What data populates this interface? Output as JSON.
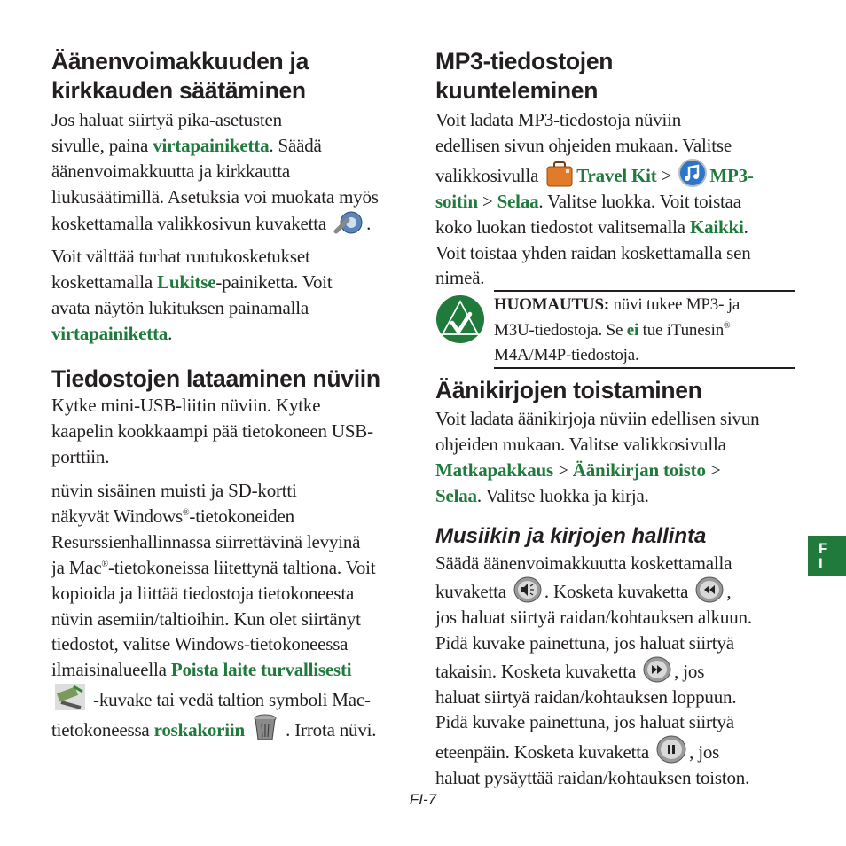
{
  "colors": {
    "accent_green": "#1f7a3c",
    "text": "#231f20"
  },
  "left": {
    "heading1": [
      "Äänenvoimakkuuden ja",
      "kirkkauden säätäminen"
    ],
    "para1": [
      [
        {
          "t": "Jos haluat siirtyä pika-asetusten"
        }
      ],
      [
        {
          "t": "sivulle, paina "
        },
        {
          "t": "virtapainiketta",
          "s": "g"
        },
        {
          "t": ". Säädä"
        }
      ],
      [
        {
          "t": "äänenvoimakkuutta ja kirkkautta"
        }
      ],
      [
        {
          "t": "liukusäätimillä. Asetuksia voi muokata myös"
        }
      ],
      [
        {
          "t": "koskettamalla valikkosivun kuvaketta "
        },
        {
          "icon": "settings-wrench-icon"
        },
        {
          "t": "."
        }
      ]
    ],
    "para2": [
      [
        {
          "t": "Voit välttää turhat ruutukosketukset"
        }
      ],
      [
        {
          "t": "koskettamalla "
        },
        {
          "t": "Lukitse",
          "s": "g"
        },
        {
          "t": "-painiketta. Voit"
        }
      ],
      [
        {
          "t": "avata näytön lukituksen painamalla"
        }
      ],
      [
        {
          "t": "virtapainiketta",
          "s": "g"
        },
        {
          "t": "."
        }
      ]
    ],
    "heading2": "Tiedostojen lataaminen nüviin",
    "para3": [
      [
        {
          "t": "Kytke mini-USB-liitin nüviin. Kytke"
        }
      ],
      [
        {
          "t": "kaapelin kookkaampi pää tietokoneen USB-"
        }
      ],
      [
        {
          "t": "porttiin."
        }
      ]
    ],
    "para4": [
      [
        {
          "t": "nüvin sisäinen muisti ja SD-kortti"
        }
      ],
      [
        {
          "t": "näkyvät Windows"
        },
        {
          "sup": "®"
        },
        {
          "t": "-tietokoneiden"
        }
      ],
      [
        {
          "t": "Resurssienhallinnassa siirrettävinä levyinä"
        }
      ],
      [
        {
          "t": "ja Mac"
        },
        {
          "sup": "®"
        },
        {
          "t": "-tietokoneissa liitettynä taltiona. Voit"
        }
      ],
      [
        {
          "t": "kopioida ja liittää tiedostoja tietokoneesta"
        }
      ],
      [
        {
          "t": "nüvin asemiin/taltioihin. Kun olet siirtänyt"
        }
      ],
      [
        {
          "t": "tiedostot, valitse Windows-tietokoneessa"
        }
      ],
      [
        {
          "t": "ilmaisinalueella "
        },
        {
          "t": "Poista laite turvallisesti",
          "s": "g"
        }
      ],
      [
        {
          "icon": "safely-remove-hardware-icon"
        },
        {
          "t": " -kuvake tai vedä taltion symboli Mac-"
        }
      ],
      [
        {
          "t": "tietokoneessa "
        },
        {
          "t": "roskakoriin",
          "s": "g"
        },
        {
          "t": " "
        },
        {
          "icon": "trash-icon"
        },
        {
          "t": " . Irrota nüvi."
        }
      ]
    ]
  },
  "right": {
    "heading1": [
      "MP3-tiedostojen",
      "kuunteleminen"
    ],
    "para1": [
      [
        {
          "t": "Voit ladata MP3-tiedostoja nüviin"
        }
      ],
      [
        {
          "t": "edellisen sivun ohjeiden mukaan. Valitse"
        }
      ],
      [
        {
          "t": "valikkosivulla "
        },
        {
          "icon": "travel-kit-suitcase-icon"
        },
        {
          "t": "Travel Kit",
          "s": "g"
        },
        {
          "t": " > "
        },
        {
          "icon": "mp3-music-note-icon"
        },
        {
          "t": "MP3-",
          "s": "g"
        }
      ],
      [
        {
          "t": "soitin",
          "s": "g"
        },
        {
          "t": " > "
        },
        {
          "t": "Selaa",
          "s": "g"
        },
        {
          "t": ". Valitse luokka. Voit toistaa"
        }
      ],
      [
        {
          "t": "koko luokan tiedostot valitsemalla "
        },
        {
          "t": "Kaikki",
          "s": "g"
        },
        {
          "t": "."
        }
      ],
      [
        {
          "t": "Voit toistaa yhden raidan koskettamalla sen"
        }
      ],
      [
        {
          "t": "nimeä."
        }
      ]
    ],
    "note": [
      [
        {
          "t": "HUOMAUTUS:",
          "s": "b"
        },
        {
          "t": " nüvi tukee MP3- ja"
        }
      ],
      [
        {
          "t": "M3U-tiedostoja. Se "
        },
        {
          "t": "ei",
          "s": "g"
        },
        {
          "t": " tue iTunesin"
        },
        {
          "sup": "®"
        }
      ],
      [
        {
          "t": "M4A/M4P-tiedostoja."
        }
      ]
    ],
    "heading2": "Äänikirjojen toistaminen",
    "para2": [
      [
        {
          "t": "Voit ladata äänikirjoja nüviin edellisen sivun"
        }
      ],
      [
        {
          "t": "ohjeiden mukaan. Valitse valikkosivulla"
        }
      ],
      [
        {
          "t": "Matkapakkaus",
          "s": "g"
        },
        {
          "t": " > "
        },
        {
          "t": "Äänikirjan toisto",
          "s": "g"
        },
        {
          "t": " >"
        }
      ],
      [
        {
          "t": "Selaa",
          "s": "g"
        },
        {
          "t": ". Valitse luokka ja kirja."
        }
      ]
    ],
    "heading3": "Musiikin ja kirjojen hallinta",
    "para3": [
      [
        {
          "t": "Säädä äänenvoimakkuutta koskettamalla"
        }
      ],
      [
        {
          "t": "kuvaketta "
        },
        {
          "icon": "volume-icon"
        },
        {
          "t": ". Kosketa kuvaketta "
        },
        {
          "icon": "rewind-icon"
        },
        {
          "t": ","
        }
      ],
      [
        {
          "t": "jos haluat siirtyä raidan/kohtauksen alkuun."
        }
      ],
      [
        {
          "t": "Pidä kuvake painettuna, jos haluat siirtyä"
        }
      ],
      [
        {
          "t": "takaisin. Kosketa kuvaketta "
        },
        {
          "icon": "fast-forward-icon"
        },
        {
          "t": ", jos"
        }
      ],
      [
        {
          "t": "haluat siirtyä raidan/kohtauksen loppuun."
        }
      ],
      [
        {
          "t": "Pidä kuvake painettuna, jos haluat siirtyä"
        }
      ],
      [
        {
          "t": "eteenpäin. Kosketa kuvaketta "
        },
        {
          "icon": "pause-icon"
        },
        {
          "t": ", jos"
        }
      ],
      [
        {
          "t": "haluat pysäyttää raidan/kohtauksen toiston."
        }
      ]
    ]
  },
  "language_tab": "FI",
  "footer": {
    "page_number": "FI-7"
  }
}
